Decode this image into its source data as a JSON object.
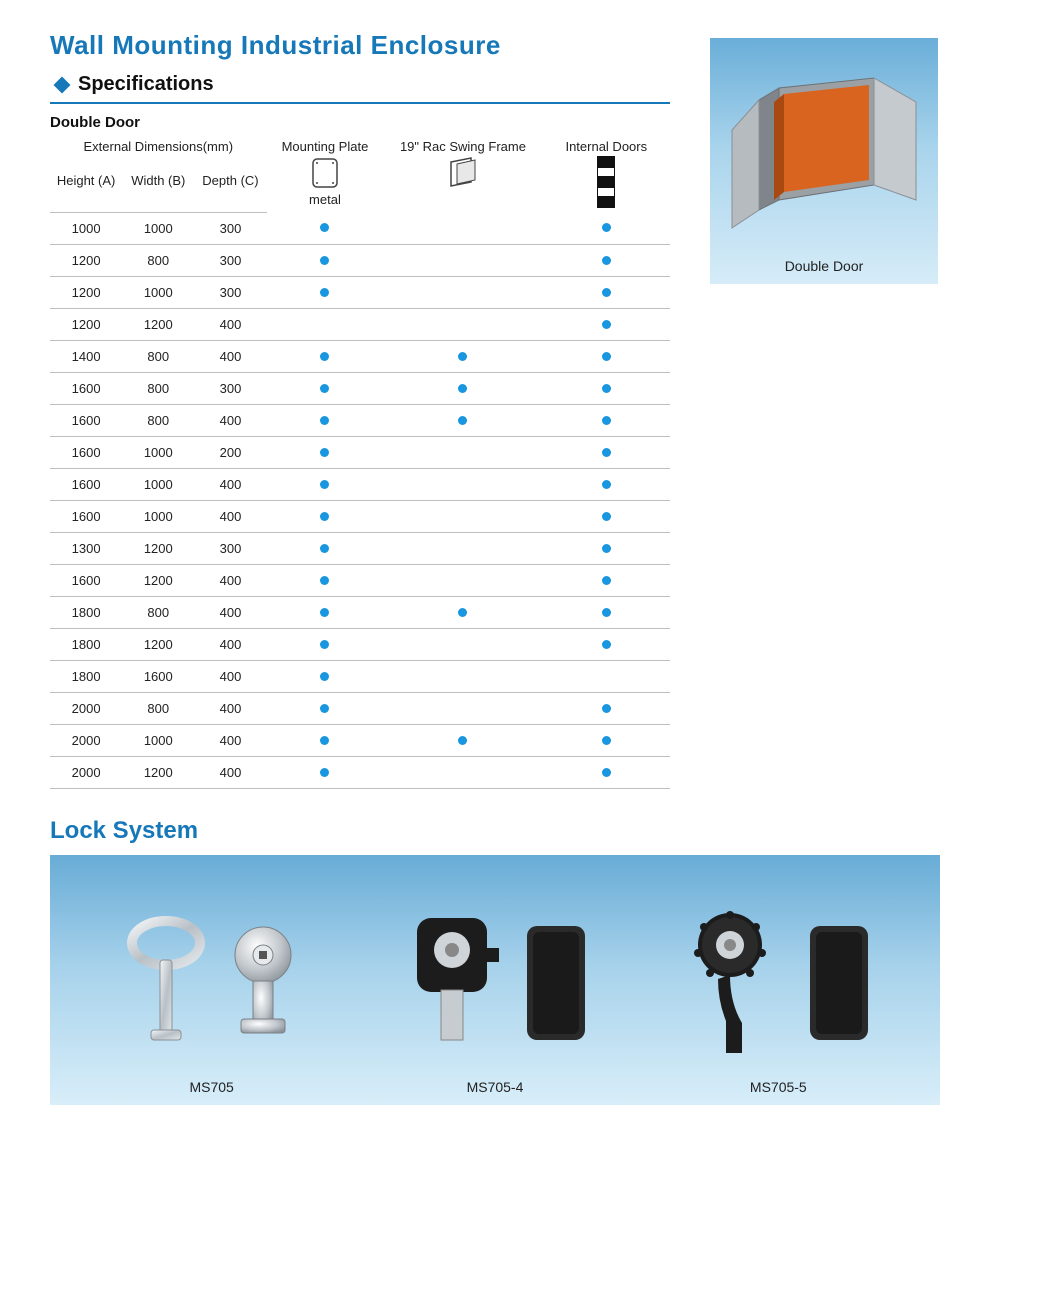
{
  "title": "Wall Mounting Industrial Enclosure",
  "specifications_label": "Specifications",
  "subtitle": "Double Door",
  "table": {
    "dims_group": "External Dimensions(mm)",
    "headers": {
      "height": "Height (A)",
      "width": "Width (B)",
      "depth": "Depth (C)",
      "mounting_plate": "Mounting Plate",
      "mounting_plate_sub": "metal",
      "rac": "19\" Rac Swing Frame",
      "internal_doors": "Internal Doors"
    },
    "dot_color": "#1896df",
    "border_color": "#bfbfbf",
    "rows": [
      {
        "h": "1000",
        "w": "1000",
        "d": "300",
        "mp": true,
        "rac": false,
        "int": true
      },
      {
        "h": "1200",
        "w": "800",
        "d": "300",
        "mp": true,
        "rac": false,
        "int": true
      },
      {
        "h": "1200",
        "w": "1000",
        "d": "300",
        "mp": true,
        "rac": false,
        "int": true
      },
      {
        "h": "1200",
        "w": "1200",
        "d": "400",
        "mp": false,
        "rac": false,
        "int": true
      },
      {
        "h": "1400",
        "w": "800",
        "d": "400",
        "mp": true,
        "rac": true,
        "int": true
      },
      {
        "h": "1600",
        "w": "800",
        "d": "300",
        "mp": true,
        "rac": true,
        "int": true
      },
      {
        "h": "1600",
        "w": "800",
        "d": "400",
        "mp": true,
        "rac": true,
        "int": true
      },
      {
        "h": "1600",
        "w": "1000",
        "d": "200",
        "mp": true,
        "rac": false,
        "int": true
      },
      {
        "h": "1600",
        "w": "1000",
        "d": "400",
        "mp": true,
        "rac": false,
        "int": true
      },
      {
        "h": "1600",
        "w": "1000",
        "d": "400",
        "mp": true,
        "rac": false,
        "int": true
      },
      {
        "h": "1300",
        "w": "1200",
        "d": "300",
        "mp": true,
        "rac": false,
        "int": true
      },
      {
        "h": "1600",
        "w": "1200",
        "d": "400",
        "mp": true,
        "rac": false,
        "int": true
      },
      {
        "h": "1800",
        "w": "800",
        "d": "400",
        "mp": true,
        "rac": true,
        "int": true
      },
      {
        "h": "1800",
        "w": "1200",
        "d": "400",
        "mp": true,
        "rac": false,
        "int": true
      },
      {
        "h": "1800",
        "w": "1600",
        "d": "400",
        "mp": true,
        "rac": false,
        "int": false
      },
      {
        "h": "2000",
        "w": "800",
        "d": "400",
        "mp": true,
        "rac": false,
        "int": true
      },
      {
        "h": "2000",
        "w": "1000",
        "d": "400",
        "mp": true,
        "rac": true,
        "int": true
      },
      {
        "h": "2000",
        "w": "1200",
        "d": "400",
        "mp": true,
        "rac": false,
        "int": true
      }
    ]
  },
  "product_card": {
    "caption": "Double Door"
  },
  "lock_system": {
    "title": "Lock System",
    "items": [
      {
        "label": "MS705"
      },
      {
        "label": "MS705-4"
      },
      {
        "label": "MS705-5"
      }
    ]
  },
  "colors": {
    "accent": "#1678b8",
    "panel_grad_top": "#68acd6",
    "panel_grad_mid": "#a7d2eb",
    "panel_grad_bot": "#d8eef9",
    "text": "#222222"
  }
}
